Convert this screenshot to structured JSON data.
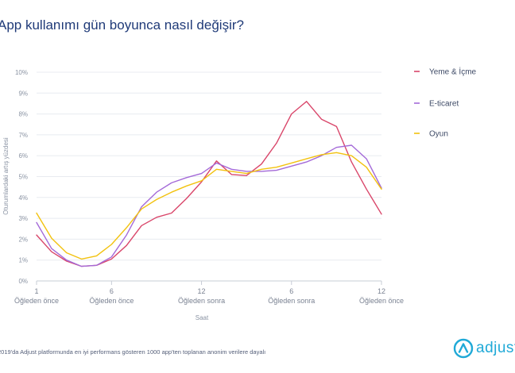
{
  "chart_data": {
    "type": "line",
    "title": "App kullanımı gün boyunca nasıl değişir?",
    "xlabel": "Saat",
    "ylabel": "Oturumlardaki artış yüzdesi",
    "ylim": [
      0,
      10
    ],
    "xlim": [
      1,
      24
    ],
    "yticks": [
      "0%",
      "1%",
      "2%",
      "3%",
      "4%",
      "5%",
      "6%",
      "7%",
      "8%",
      "9%",
      "10%"
    ],
    "xticks": [
      {
        "x": 1,
        "num": "1",
        "label": "Öğleden önce"
      },
      {
        "x": 6,
        "num": "6",
        "label": "Öğleden önce"
      },
      {
        "x": 12,
        "num": "12",
        "label": "Öğleden sonra"
      },
      {
        "x": 18,
        "num": "6",
        "label": "Öğleden sonra"
      },
      {
        "x": 24,
        "num": "12",
        "label": "Öğleden önce"
      }
    ],
    "grid": "horizontal",
    "legend_position": "right",
    "x": [
      1,
      2,
      3,
      4,
      5,
      6,
      7,
      8,
      9,
      10,
      11,
      12,
      13,
      14,
      15,
      16,
      17,
      18,
      19,
      20,
      21,
      22,
      23,
      24
    ],
    "series": [
      {
        "name": "Yeme & İçme",
        "color": "#d9466a",
        "values": [
          2.2,
          1.4,
          0.95,
          0.7,
          0.75,
          1.05,
          1.7,
          2.65,
          3.05,
          3.25,
          3.95,
          4.75,
          5.75,
          5.1,
          5.05,
          5.6,
          6.6,
          8.0,
          8.6,
          7.75,
          7.4,
          5.7,
          4.4,
          3.2
        ]
      },
      {
        "name": "E-ticaret",
        "color": "#a46ad8",
        "values": [
          2.8,
          1.55,
          1.0,
          0.7,
          0.75,
          1.15,
          2.2,
          3.55,
          4.25,
          4.7,
          4.95,
          5.15,
          5.65,
          5.35,
          5.25,
          5.25,
          5.3,
          5.5,
          5.7,
          6.0,
          6.4,
          6.5,
          5.85,
          4.45
        ]
      },
      {
        "name": "Oyun",
        "color": "#f2c20f",
        "values": [
          3.25,
          2.05,
          1.35,
          1.05,
          1.2,
          1.75,
          2.55,
          3.45,
          3.9,
          4.25,
          4.55,
          4.8,
          5.35,
          5.25,
          5.15,
          5.35,
          5.45,
          5.65,
          5.85,
          6.05,
          6.15,
          6.0,
          5.45,
          4.4
        ]
      }
    ],
    "footnote": "2019'da Adjust platformunda en iyi performans gösteren 1000 app'ten toplanan anonim verilere dayalı"
  },
  "brand": {
    "name": "adjust",
    "color": "#1fa9d7",
    "icon": "adjust-logo-icon"
  }
}
